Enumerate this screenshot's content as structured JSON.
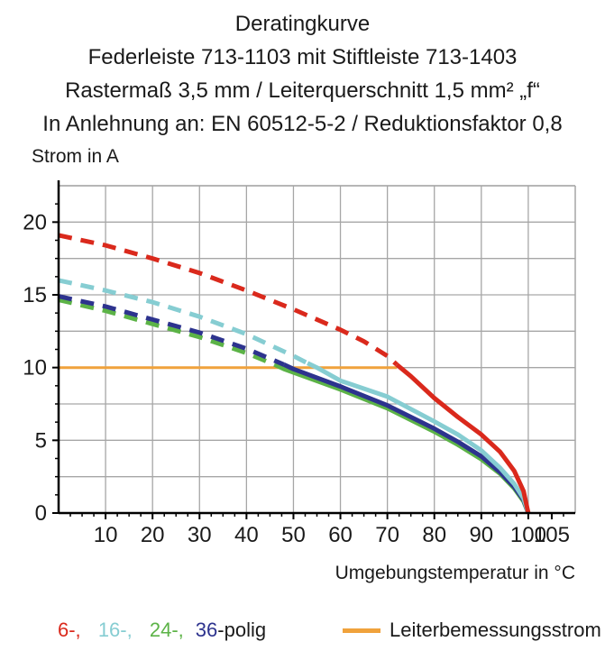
{
  "title": {
    "lines": [
      "Deratingkurve",
      "Federleiste 713-1103 mit Stiftleiste 713-1403",
      "Rastermaß 3,5 mm / Leiterquerschnitt 1,5 mm² „f“",
      "In Anlehnung an: EN 60512-5-2 / Reduktionsfaktor 0,8"
    ]
  },
  "chart_data": {
    "type": "line",
    "title": "Deratingkurve",
    "xlabel": "Umgebungstemperatur in °C",
    "ylabel": "Strom in A",
    "xlim": [
      0,
      110
    ],
    "ylim": [
      0,
      22.5
    ],
    "grid": {
      "x_every": 10,
      "y_every": 2.5
    },
    "x_minor_tick_every": 2.5,
    "y_minor_tick_every": 1.25,
    "x_tick_labels": [
      10,
      20,
      30,
      40,
      50,
      60,
      70,
      80,
      90,
      100,
      105
    ],
    "y_tick_labels": [
      0,
      5,
      10,
      15,
      20
    ],
    "axis_color": "#000000",
    "grid_color": "#a6a6a6",
    "series": [
      {
        "name": "Leiterbemessungsstrom",
        "color": "#f0a23c",
        "style": "solid",
        "width": 3,
        "points": [
          [
            0,
            10
          ],
          [
            72,
            10
          ]
        ]
      },
      {
        "name": "24-polig",
        "color": "#5cb347",
        "style": "dashed-then-solid",
        "dash_until_x": 46,
        "width": 5,
        "points": [
          [
            0,
            14.65
          ],
          [
            10,
            13.9
          ],
          [
            20,
            13.0
          ],
          [
            30,
            12.1
          ],
          [
            40,
            11.0
          ],
          [
            46,
            10.2
          ],
          [
            48,
            9.9
          ],
          [
            60,
            8.5
          ],
          [
            70,
            7.2
          ],
          [
            80,
            5.6
          ],
          [
            85,
            4.7
          ],
          [
            90,
            3.7
          ],
          [
            94,
            2.7
          ],
          [
            97,
            1.7
          ],
          [
            99,
            0.8
          ],
          [
            100,
            0
          ]
        ]
      },
      {
        "name": "36-polig",
        "color": "#2d338e",
        "style": "dashed-then-solid",
        "dash_until_x": 48,
        "width": 5,
        "points": [
          [
            0,
            14.9
          ],
          [
            10,
            14.2
          ],
          [
            20,
            13.3
          ],
          [
            30,
            12.4
          ],
          [
            40,
            11.3
          ],
          [
            48,
            10.2
          ],
          [
            50,
            9.9
          ],
          [
            60,
            8.7
          ],
          [
            70,
            7.4
          ],
          [
            80,
            5.8
          ],
          [
            85,
            4.9
          ],
          [
            90,
            3.9
          ],
          [
            94,
            2.8
          ],
          [
            97,
            1.8
          ],
          [
            99,
            0.9
          ],
          [
            100,
            0
          ]
        ]
      },
      {
        "name": "16-polig",
        "color": "#86cdd2",
        "style": "dashed-then-solid",
        "dash_until_x": 53,
        "width": 5,
        "points": [
          [
            0,
            16.0
          ],
          [
            10,
            15.3
          ],
          [
            20,
            14.5
          ],
          [
            30,
            13.5
          ],
          [
            40,
            12.3
          ],
          [
            50,
            10.8
          ],
          [
            53,
            10.3
          ],
          [
            55,
            10.0
          ],
          [
            60,
            9.1
          ],
          [
            70,
            8.0
          ],
          [
            80,
            6.3
          ],
          [
            85,
            5.4
          ],
          [
            90,
            4.3
          ],
          [
            94,
            3.1
          ],
          [
            97,
            2.0
          ],
          [
            99,
            1.0
          ],
          [
            100,
            0
          ]
        ]
      },
      {
        "name": "6-polig",
        "color": "#da291c",
        "style": "dashed-then-solid",
        "dash_until_x": 72,
        "width": 5,
        "points": [
          [
            0,
            19.1
          ],
          [
            10,
            18.4
          ],
          [
            20,
            17.5
          ],
          [
            30,
            16.5
          ],
          [
            40,
            15.3
          ],
          [
            50,
            14.0
          ],
          [
            60,
            12.6
          ],
          [
            65,
            11.8
          ],
          [
            70,
            10.8
          ],
          [
            72,
            10.2
          ],
          [
            75,
            9.4
          ],
          [
            80,
            7.9
          ],
          [
            85,
            6.6
          ],
          [
            90,
            5.4
          ],
          [
            94,
            4.2
          ],
          [
            97,
            2.9
          ],
          [
            99,
            1.5
          ],
          [
            100,
            0
          ]
        ]
      }
    ]
  },
  "axes": {
    "y_title": "Strom in A",
    "x_title": "Umgebungstemperatur in °C"
  },
  "legend": {
    "pole_items": [
      {
        "label": "6-,",
        "color": "#da291c"
      },
      {
        "label": "16-,",
        "color": "#86cdd2"
      },
      {
        "label": "24-,",
        "color": "#5cb347"
      },
      {
        "label": "36",
        "color": "#2d338e"
      }
    ],
    "pole_suffix": "-polig",
    "rated_current_label": "Leiterbemessungsstrom",
    "rated_current_color": "#f0a23c"
  }
}
